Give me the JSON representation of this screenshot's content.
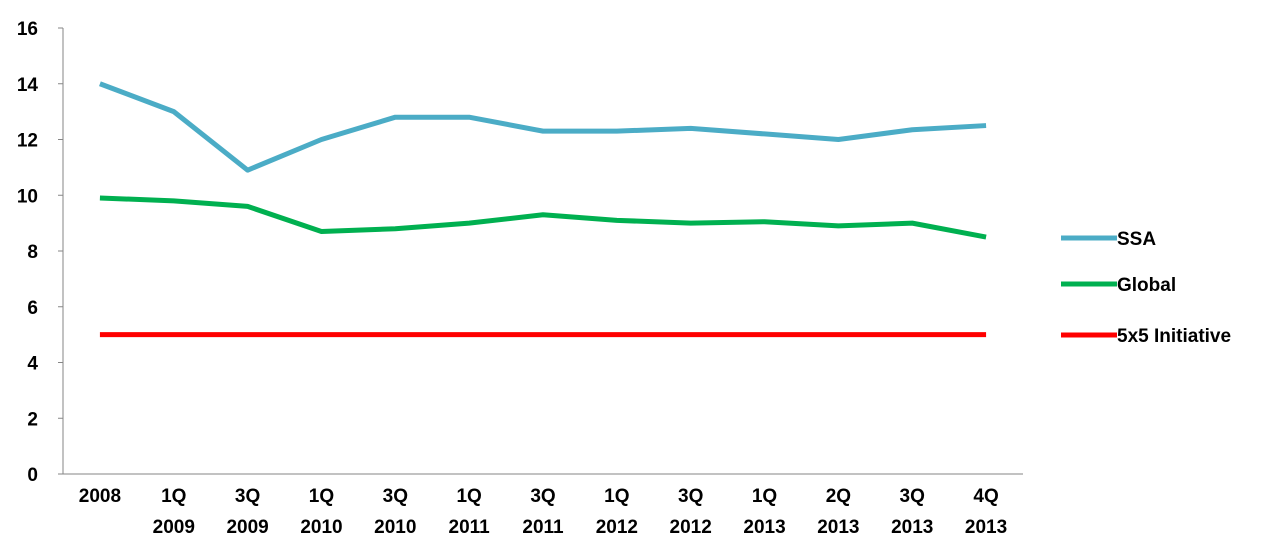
{
  "chart_data": {
    "type": "line",
    "title": "",
    "xlabel": "",
    "ylabel": "",
    "ylim": [
      0,
      16
    ],
    "yticks": [
      "0",
      "2",
      "4",
      "6",
      "8",
      "10",
      "12",
      "14",
      "16"
    ],
    "grid": false,
    "legend_position": "right",
    "categories": [
      [
        "2008"
      ],
      [
        "1Q",
        "2009"
      ],
      [
        "3Q",
        "2009"
      ],
      [
        "1Q",
        "2010"
      ],
      [
        "3Q",
        "2010"
      ],
      [
        "1Q",
        "2011"
      ],
      [
        "3Q",
        "2011"
      ],
      [
        "1Q",
        "2012"
      ],
      [
        "3Q",
        "2012"
      ],
      [
        "1Q",
        "2013"
      ],
      [
        "2Q",
        "2013"
      ],
      [
        "3Q",
        "2013"
      ],
      [
        "4Q",
        "2013"
      ]
    ],
    "series": [
      {
        "name": "SSA",
        "color": "#4BACC6",
        "values": [
          14.0,
          13.0,
          10.9,
          12.0,
          12.8,
          12.8,
          12.3,
          12.3,
          12.4,
          12.2,
          12.0,
          12.35,
          12.5
        ]
      },
      {
        "name": "Global",
        "color": "#00B050",
        "values": [
          9.9,
          9.8,
          9.6,
          8.7,
          8.8,
          9.0,
          9.3,
          9.1,
          9.0,
          9.05,
          8.9,
          9.0,
          8.5
        ]
      },
      {
        "name": "5x5 Initiative",
        "color": "#FF0000",
        "values": [
          5,
          5,
          5,
          5,
          5,
          5,
          5,
          5,
          5,
          5,
          5,
          5,
          5
        ]
      }
    ]
  }
}
